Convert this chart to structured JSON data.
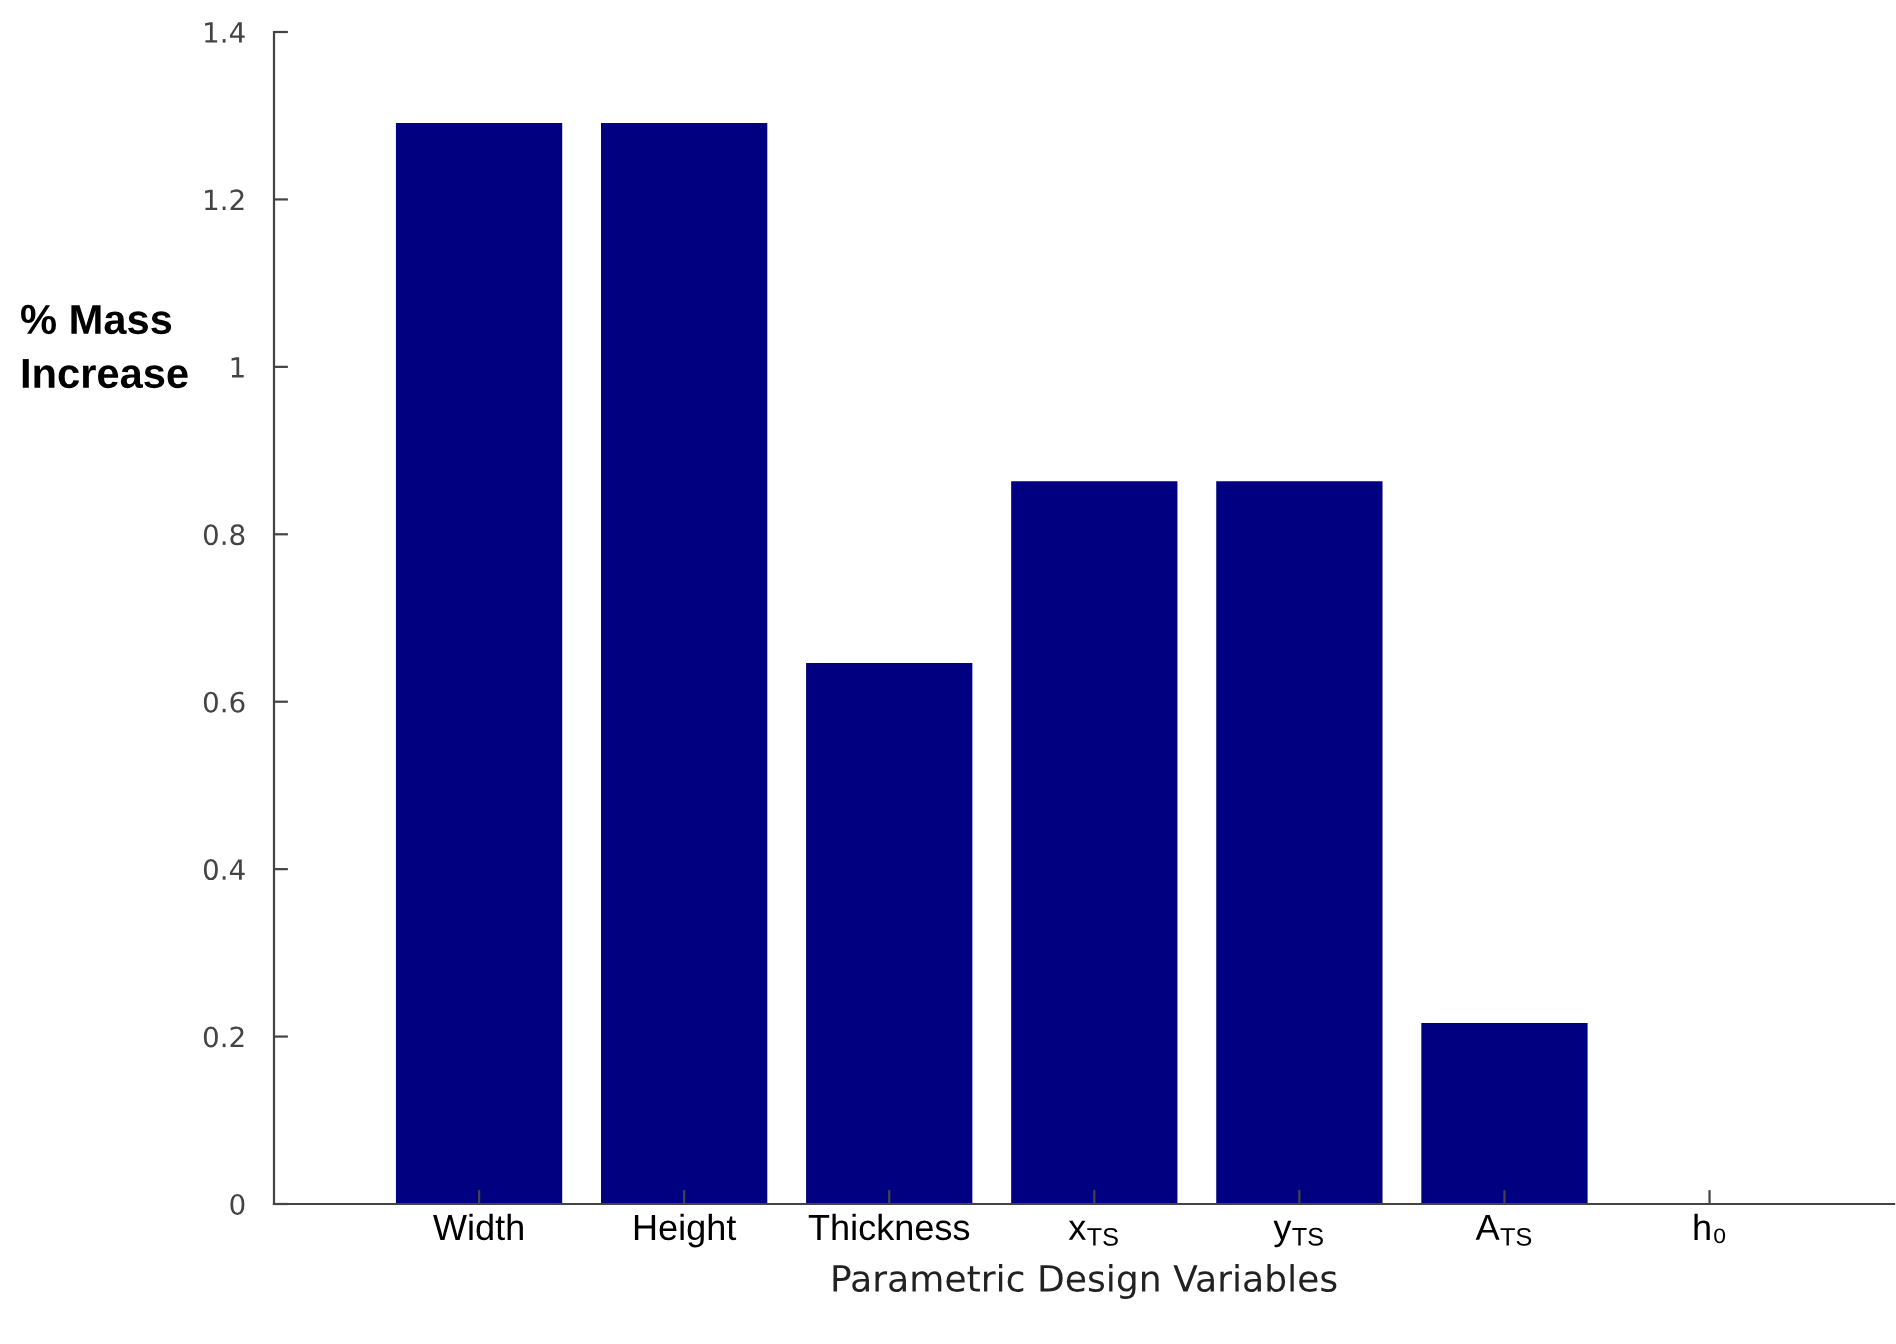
{
  "chart_data": {
    "type": "bar",
    "xlabel": "Parametric Design Variables",
    "ylabel": "% Mass\nIncrease",
    "categories": [
      "Width",
      "Height",
      "Thickness",
      "x$_{TS}$",
      "y$_{TS}$",
      "A$_{TS}$",
      "h₀"
    ],
    "values": [
      1.29,
      1.29,
      0.645,
      0.862,
      0.862,
      0.215,
      0
    ],
    "color": "#000080",
    "ylim": [
      0,
      1.4
    ],
    "yticks": [
      0,
      0.2,
      0.4,
      0.6,
      0.8,
      1,
      1.2,
      1.4
    ],
    "grid": false
  }
}
